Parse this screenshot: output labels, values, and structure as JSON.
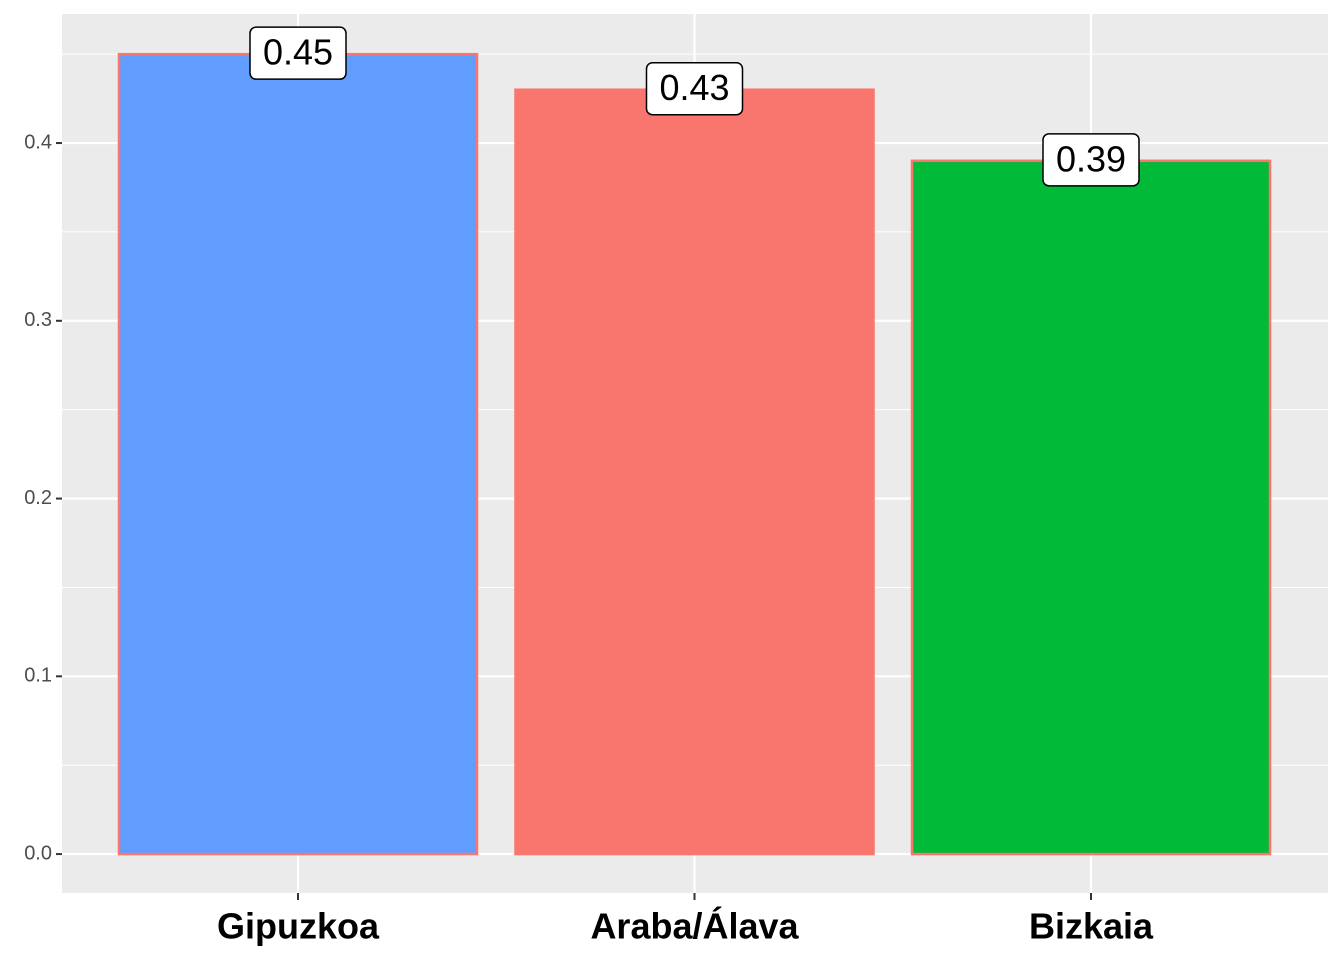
{
  "chart_data": {
    "type": "bar",
    "categories": [
      "Gipuzkoa",
      "Araba/Álava",
      "Bizkaia"
    ],
    "values": [
      0.45,
      0.43,
      0.39
    ],
    "colors": [
      "#619CFF",
      "#F8766D",
      "#00BA38"
    ],
    "outline_color": "#F8766D",
    "ylim": [
      -0.0219,
      0.4726
    ],
    "yticks": [
      {
        "value": 0,
        "label": "0.0"
      },
      0.1,
      0.2,
      0.3,
      0.4
    ],
    "grid": true
  }
}
